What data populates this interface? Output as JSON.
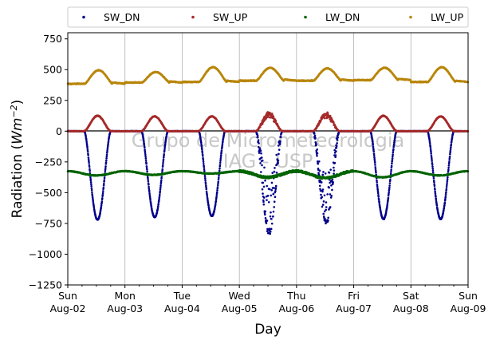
{
  "chart_data": {
    "type": "scatter",
    "title": "",
    "xlabel": "Day",
    "ylabel_prefix": "Radiation (",
    "ylabel_unit_base": "Wm",
    "ylabel_unit_exp": "−2",
    "ylabel_suffix": ")",
    "ylim": [
      -1250,
      800
    ],
    "yticks": [
      750,
      500,
      250,
      0,
      -250,
      -500,
      -750,
      -1000,
      -1250
    ],
    "ytick_labels": [
      "750",
      "500",
      "250",
      "0",
      "−250",
      "−500",
      "−750",
      "−1000",
      "−1250"
    ],
    "xlim_days": [
      0,
      7
    ],
    "xtick_labels": [
      {
        "day": "Sun",
        "date": "Aug-02"
      },
      {
        "day": "Mon",
        "date": "Aug-03"
      },
      {
        "day": "Tue",
        "date": "Aug-04"
      },
      {
        "day": "Wed",
        "date": "Aug-05"
      },
      {
        "day": "Thu",
        "date": "Aug-06"
      },
      {
        "day": "Fri",
        "date": "Aug-07"
      },
      {
        "day": "Sat",
        "date": "Aug-08"
      },
      {
        "day": "Sun",
        "date": "Aug-09"
      }
    ],
    "grid": "vertical",
    "legend_position": "top",
    "watermark": [
      "Grupo de Micrometeorologia",
      "IAG - USP"
    ],
    "series": [
      {
        "name": "SW_DN",
        "color": "#00008b",
        "sunrise": 0.29,
        "sunset": 0.75,
        "daily_min": [
          -720,
          -700,
          -690,
          -830,
          -740,
          -715,
          -715
        ],
        "noisy_days": [
          3,
          4
        ]
      },
      {
        "name": "SW_UP",
        "color": "#a52a2a",
        "sunrise": 0.29,
        "sunset": 0.75,
        "daily_max": [
          125,
          120,
          120,
          145,
          140,
          125,
          120
        ],
        "noisy_days": [
          3,
          4
        ]
      },
      {
        "name": "LW_DN",
        "color": "#006400",
        "base": -325,
        "daily_dip": [
          -360,
          -355,
          -345,
          -375,
          -380,
          -375,
          -360
        ],
        "start": -320,
        "end": -325
      },
      {
        "name": "LW_UP",
        "color": "#b8860b",
        "daily_peak": [
          495,
          480,
          520,
          515,
          510,
          515,
          520
        ],
        "daily_low": [
          385,
          395,
          400,
          410,
          410,
          415,
          400
        ],
        "start": 400,
        "end": 410
      }
    ]
  }
}
